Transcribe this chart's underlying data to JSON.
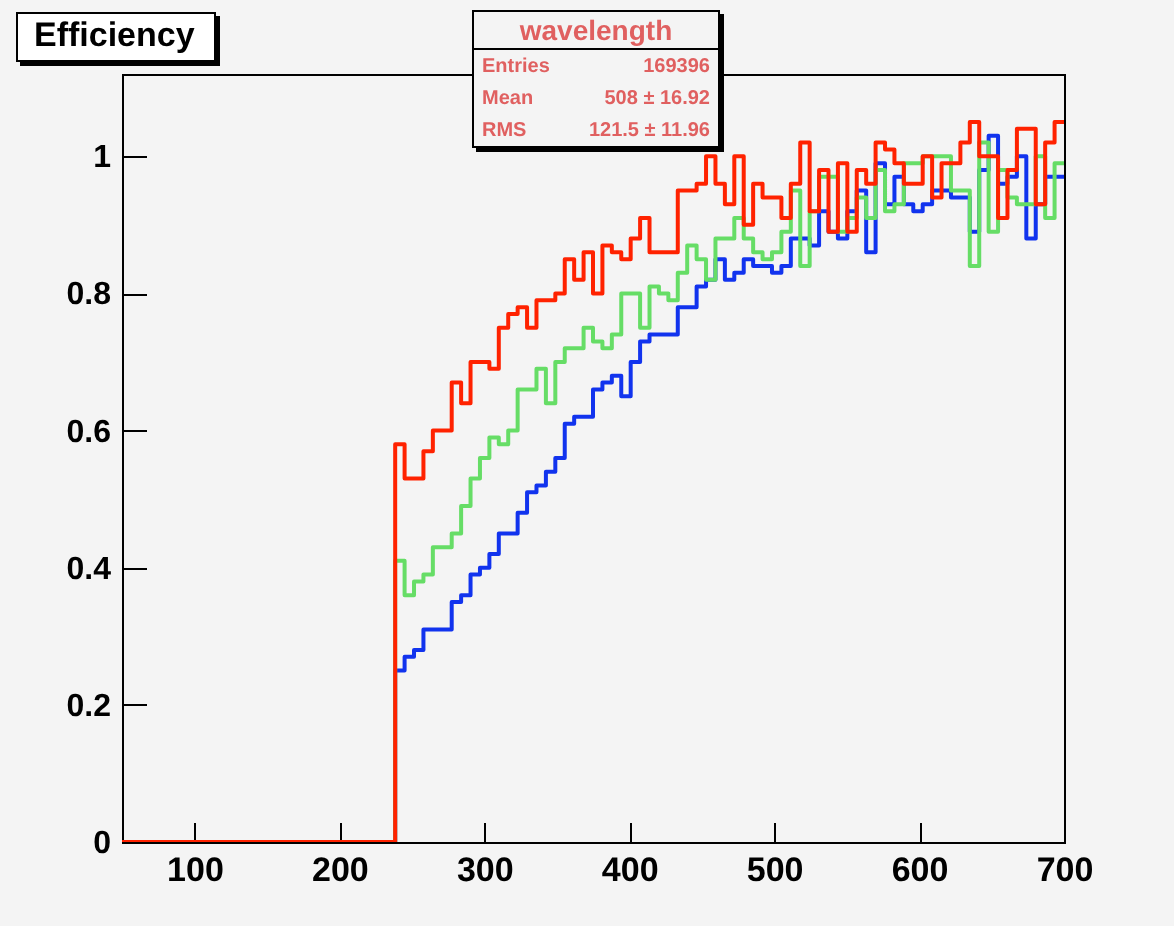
{
  "chart_data": {
    "type": "histogram",
    "title": "Efficiency",
    "annotations": [
      "wavelength",
      "Entries 169396",
      "Mean 508 ± 16.92",
      "RMS 121.5 ± 11.96"
    ],
    "bins": [
      50,
      56.5,
      63,
      69.5,
      76,
      82.5,
      89,
      95.5,
      102,
      108.5,
      115,
      121.5,
      128,
      134.5,
      141,
      147.5,
      154,
      160.5,
      167,
      173.5,
      180,
      186.5,
      193,
      199.5,
      206,
      212.5,
      219,
      225.5,
      232,
      238.5,
      245,
      251.5,
      258,
      264.5,
      271,
      277.5,
      284,
      290.5,
      297,
      303.5,
      310,
      316.5,
      323,
      329.5,
      336,
      342.5,
      349,
      355.5,
      362,
      368.5,
      375,
      381.5,
      388,
      394.5,
      401,
      407.5,
      414,
      420.5,
      427,
      433.5,
      440,
      446.5,
      453,
      459.5,
      466,
      472.5,
      479,
      485.5,
      492,
      498.5,
      505,
      511.5,
      518,
      524.5,
      531,
      537.5,
      544,
      550.5,
      557,
      563.5,
      570,
      576.5,
      583,
      589.5,
      596,
      602.5,
      609,
      615.5,
      622,
      628.5,
      635,
      641.5,
      648,
      654.5,
      661,
      667.5,
      674,
      680.5,
      687,
      693.5,
      700
    ],
    "series": [
      {
        "color": "#1133ee",
        "values": [
          0,
          0,
          0,
          0,
          0,
          0,
          0,
          0,
          0,
          0,
          0,
          0,
          0,
          0,
          0,
          0,
          0,
          0,
          0,
          0,
          0,
          0,
          0,
          0,
          0,
          0,
          0,
          0,
          0,
          0.25,
          0.27,
          0.28,
          0.31,
          0.31,
          0.31,
          0.35,
          0.36,
          0.39,
          0.4,
          0.42,
          0.45,
          0.45,
          0.48,
          0.51,
          0.52,
          0.54,
          0.56,
          0.61,
          0.62,
          0.62,
          0.66,
          0.67,
          0.68,
          0.65,
          0.7,
          0.73,
          0.74,
          0.74,
          0.74,
          0.78,
          0.78,
          0.81,
          0.82,
          0.85,
          0.82,
          0.83,
          0.85,
          0.84,
          0.84,
          0.83,
          0.84,
          0.88,
          0.88,
          0.87,
          0.92,
          0.89,
          0.88,
          0.92,
          0.95,
          0.86,
          0.99,
          0.93,
          0.97,
          0.93,
          0.92,
          0.93,
          0.95,
          0.95,
          0.94,
          0.94,
          0.89,
          0.98,
          1.03,
          0.96,
          0.97,
          1.0,
          0.88,
          0.93,
          0.97,
          0.97
        ]
      },
      {
        "color": "#66dd66",
        "values": [
          0,
          0,
          0,
          0,
          0,
          0,
          0,
          0,
          0,
          0,
          0,
          0,
          0,
          0,
          0,
          0,
          0,
          0,
          0,
          0,
          0,
          0,
          0,
          0,
          0,
          0,
          0,
          0,
          0,
          0.41,
          0.36,
          0.38,
          0.39,
          0.43,
          0.43,
          0.45,
          0.49,
          0.53,
          0.56,
          0.59,
          0.58,
          0.6,
          0.66,
          0.66,
          0.69,
          0.64,
          0.7,
          0.72,
          0.72,
          0.75,
          0.73,
          0.72,
          0.74,
          0.8,
          0.8,
          0.75,
          0.81,
          0.8,
          0.79,
          0.83,
          0.87,
          0.85,
          0.82,
          0.88,
          0.88,
          0.91,
          0.88,
          0.86,
          0.85,
          0.86,
          0.89,
          0.95,
          0.84,
          0.92,
          0.97,
          0.97,
          0.89,
          0.91,
          0.94,
          0.91,
          0.98,
          0.92,
          0.93,
          0.99,
          0.99,
          1.0,
          1.0,
          1.0,
          0.95,
          0.95,
          0.84,
          1.02,
          0.89,
          0.98,
          0.94,
          0.93,
          0.93,
          1.0,
          0.91,
          0.99
        ]
      },
      {
        "color": "#ff2200",
        "values": [
          0,
          0,
          0,
          0,
          0,
          0,
          0,
          0,
          0,
          0,
          0,
          0,
          0,
          0,
          0,
          0,
          0,
          0,
          0,
          0,
          0,
          0,
          0,
          0,
          0,
          0,
          0,
          0,
          0,
          0.58,
          0.53,
          0.53,
          0.57,
          0.6,
          0.6,
          0.67,
          0.64,
          0.7,
          0.7,
          0.69,
          0.75,
          0.77,
          0.78,
          0.75,
          0.79,
          0.79,
          0.8,
          0.85,
          0.82,
          0.86,
          0.8,
          0.87,
          0.86,
          0.85,
          0.88,
          0.91,
          0.86,
          0.86,
          0.86,
          0.95,
          0.95,
          0.96,
          1.0,
          0.96,
          0.93,
          1.0,
          0.9,
          0.96,
          0.94,
          0.94,
          0.91,
          0.96,
          1.02,
          0.92,
          0.98,
          0.89,
          0.99,
          0.89,
          0.98,
          0.96,
          1.02,
          1.01,
          0.99,
          0.96,
          0.96,
          1.0,
          0.94,
          0.99,
          0.99,
          1.02,
          1.05,
          1.0,
          1.0,
          0.91,
          0.98,
          1.04,
          1.04,
          0.93,
          1.02,
          1.05
        ]
      }
    ],
    "xlim": [
      50,
      700
    ],
    "xticks": [
      100,
      200,
      300,
      400,
      500,
      600,
      700
    ],
    "ylim": [
      0,
      1.12
    ],
    "yticks": [
      0,
      0.2,
      0.4,
      0.6,
      0.8,
      1
    ],
    "grid": false
  }
}
